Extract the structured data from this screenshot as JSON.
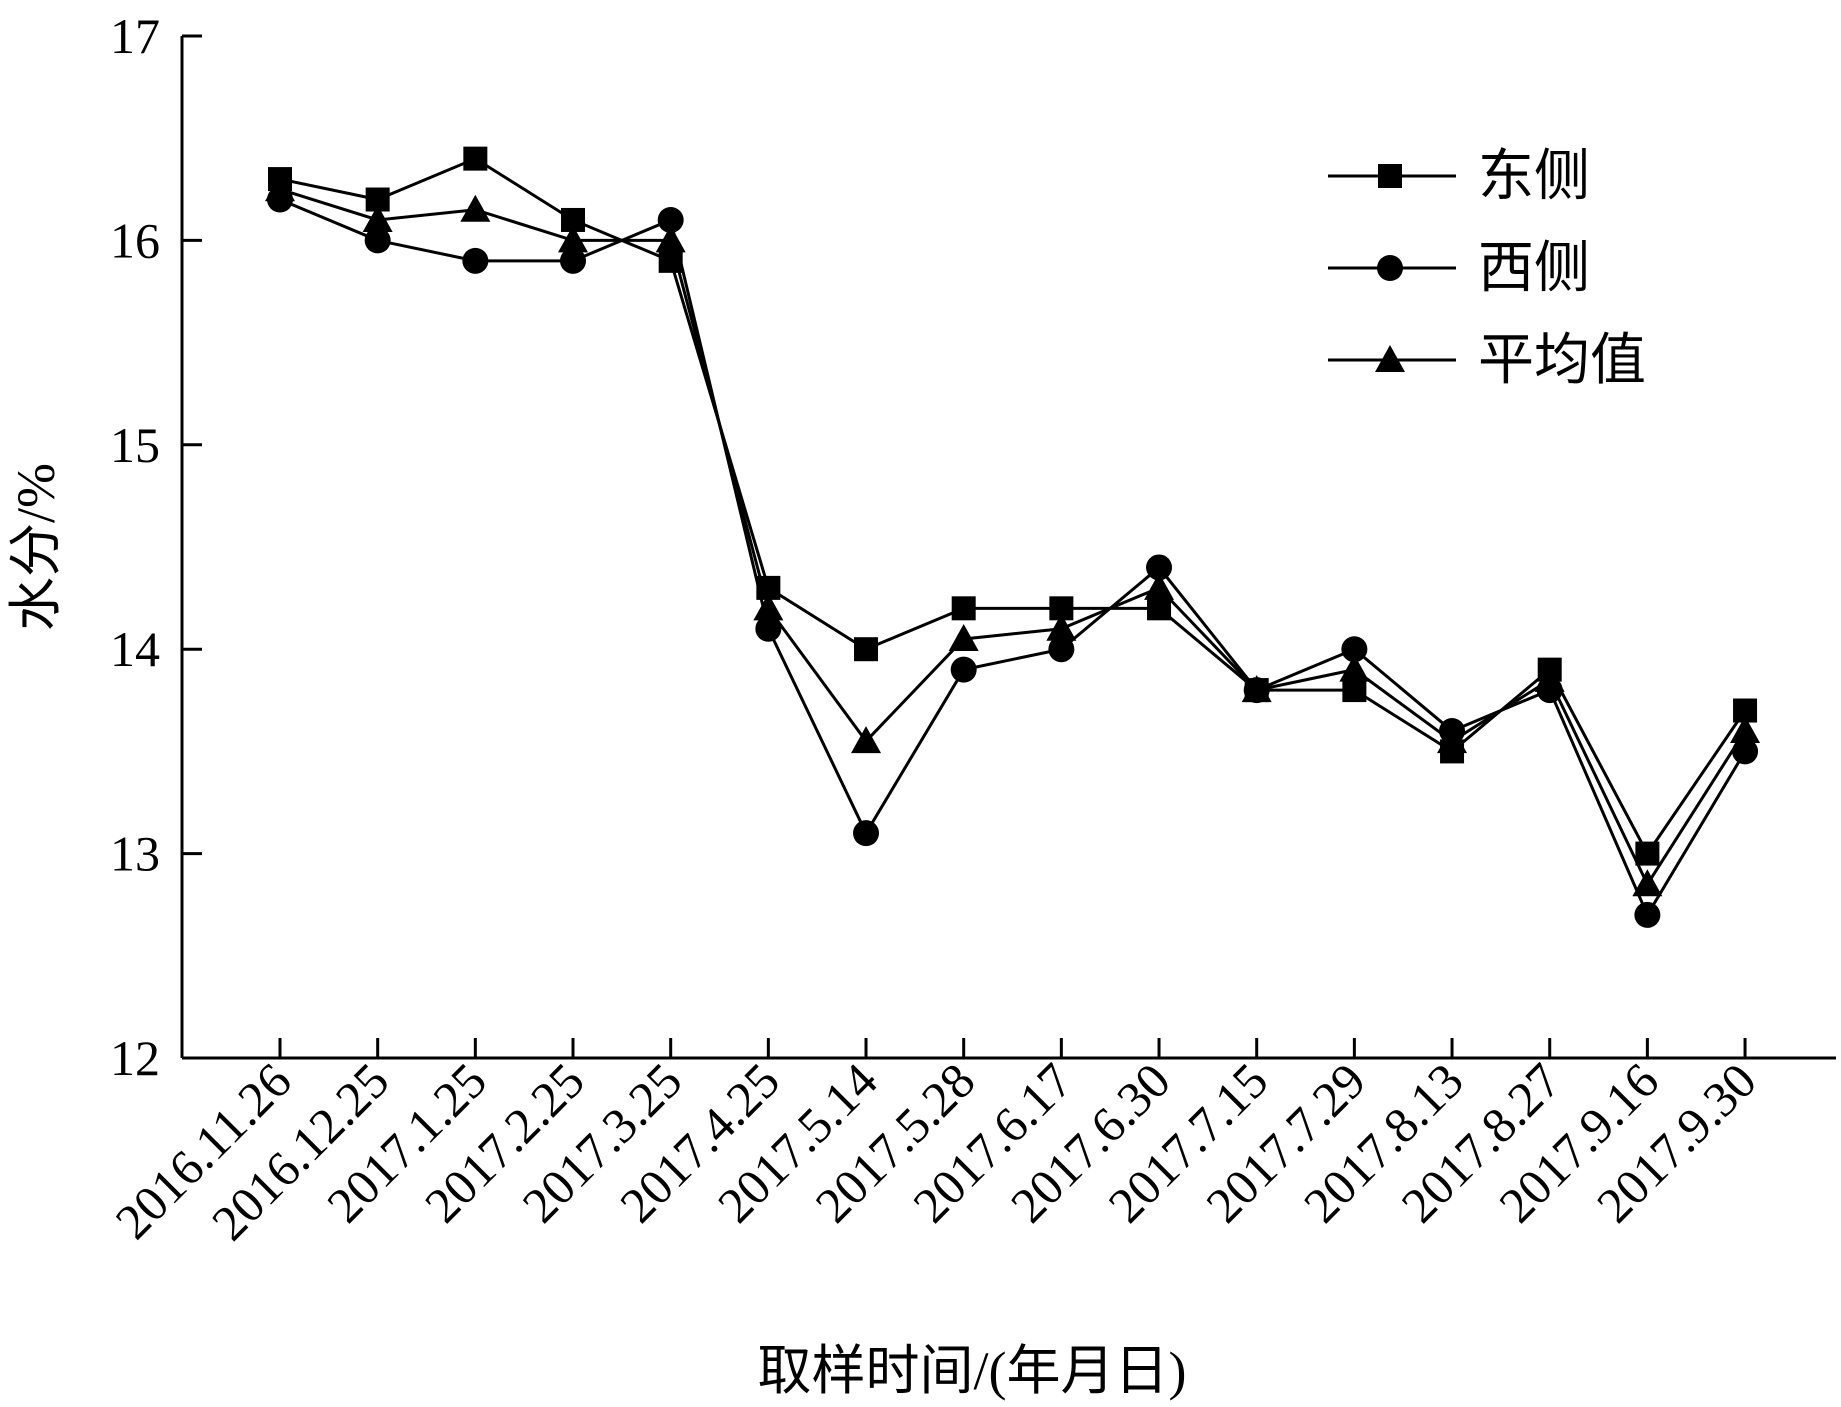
{
  "chart_data": {
    "type": "line",
    "title": "",
    "xlabel": "取样时间/(年月日)",
    "ylabel": "水分/%",
    "ylim": [
      12,
      17
    ],
    "yticks": [
      "12",
      "13",
      "14",
      "15",
      "16",
      "17"
    ],
    "categories": [
      "2016.11.26",
      "2016.12.25",
      "2017.1.25",
      "2017.2.25",
      "2017.3.25",
      "2017.4.25",
      "2017.5.14",
      "2017.5.28",
      "2017.6.17",
      "2017.6.30",
      "2017.7.15",
      "2017.7.29",
      "2017.8.13",
      "2017.8.27",
      "2017.9.16",
      "2017.9.30"
    ],
    "legend_position": "top-right",
    "grid": false,
    "series": [
      {
        "name": "东侧",
        "marker": "square",
        "color": "#000000",
        "values": [
          16.3,
          16.2,
          16.4,
          16.1,
          15.9,
          14.3,
          14.0,
          14.2,
          14.2,
          14.2,
          13.8,
          13.8,
          13.5,
          13.9,
          13.0,
          13.7
        ]
      },
      {
        "name": "西侧",
        "marker": "circle",
        "color": "#000000",
        "values": [
          16.2,
          16.0,
          15.9,
          15.9,
          16.1,
          14.1,
          13.1,
          13.9,
          14.0,
          14.4,
          13.8,
          14.0,
          13.6,
          13.8,
          12.7,
          13.5
        ]
      },
      {
        "name": "平均值",
        "marker": "triangle",
        "color": "#000000",
        "values": [
          16.25,
          16.1,
          16.15,
          16.0,
          16.0,
          14.2,
          13.55,
          14.05,
          14.1,
          14.3,
          13.8,
          13.9,
          13.55,
          13.85,
          12.85,
          13.6
        ]
      }
    ]
  }
}
